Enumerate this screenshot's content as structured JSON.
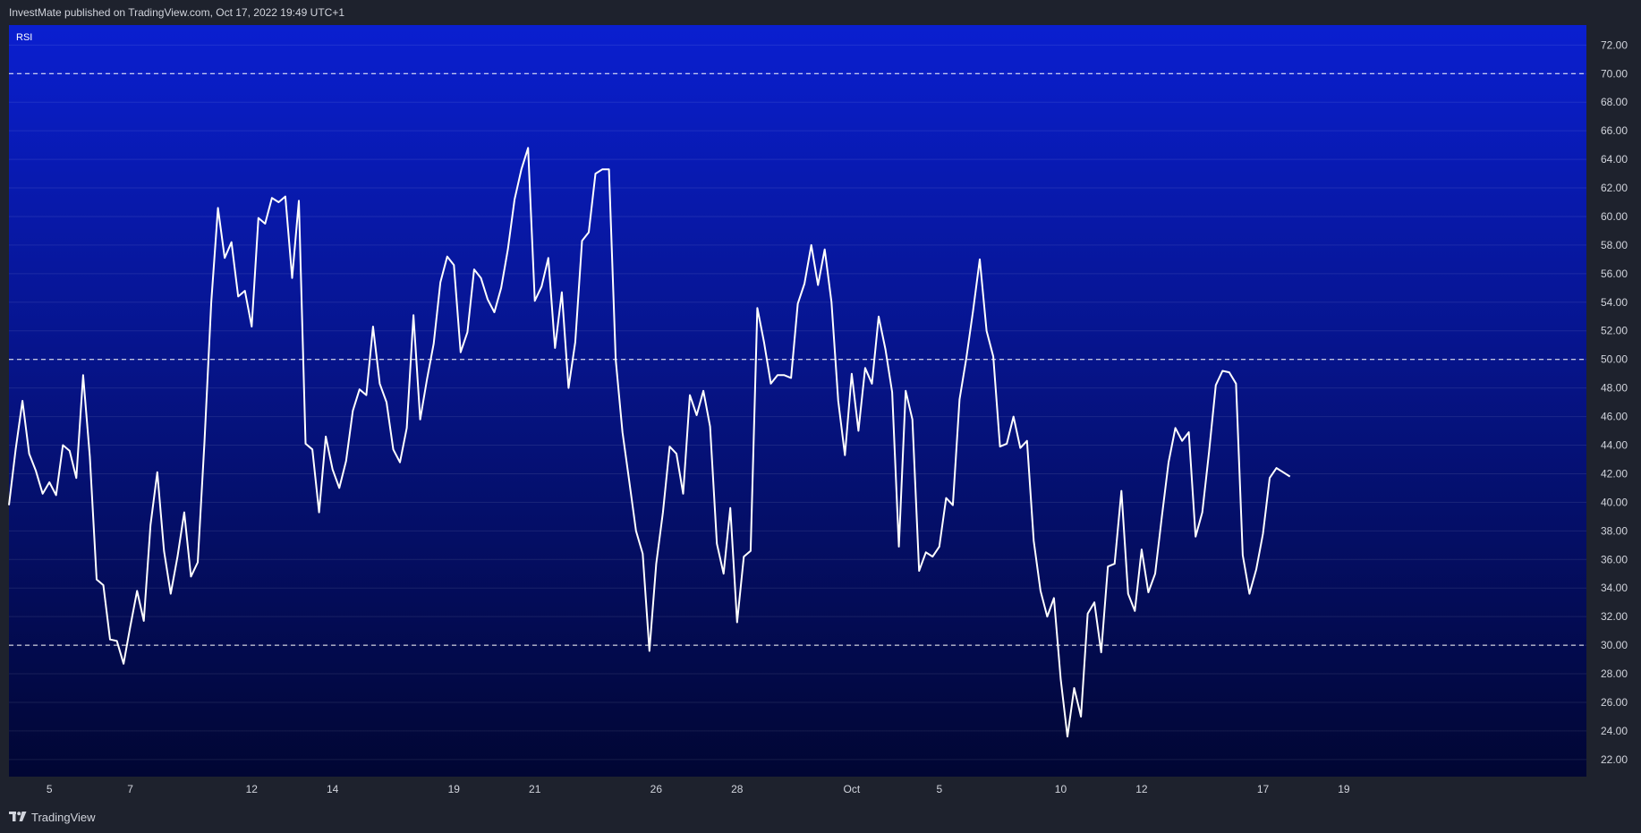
{
  "header": {
    "published_text": "InvestMate published on TradingView.com, Oct 17, 2022 19:49 UTC+1"
  },
  "footer": {
    "brand": "TradingView",
    "logo_icon": "tradingview-logo-icon"
  },
  "indicator_label": "RSI",
  "colors": {
    "outer_background": "#1e222d",
    "plot_gradient_top": "#0a1fd0",
    "plot_gradient_bottom": "#010633",
    "line": "#ffffff",
    "text": "#d1d4dc"
  },
  "chart_data": {
    "type": "line",
    "title": "",
    "xlabel": "",
    "ylabel": "",
    "ylim": [
      20.8,
      73.4
    ],
    "y_ticks": [
      "72.00",
      "70.00",
      "68.00",
      "66.00",
      "64.00",
      "62.00",
      "60.00",
      "58.00",
      "56.00",
      "54.00",
      "52.00",
      "50.00",
      "48.00",
      "46.00",
      "44.00",
      "42.00",
      "40.00",
      "38.00",
      "36.00",
      "34.00",
      "32.00",
      "30.00",
      "28.00",
      "26.00",
      "24.00",
      "22.00"
    ],
    "reference_lines": [
      70,
      50,
      30
    ],
    "x_tick_labels": [
      "5",
      "7",
      "12",
      "14",
      "19",
      "21",
      "26",
      "28",
      "Oct",
      "5",
      "10",
      "12",
      "17",
      "19"
    ],
    "x_tick_index": [
      6,
      18,
      36,
      48,
      66,
      78,
      96,
      108,
      125,
      138,
      156,
      168,
      186,
      198
    ],
    "grid": true,
    "legend": "none",
    "series": [
      {
        "values": [
          39.8,
          43.7,
          47.1,
          43.4,
          42.2,
          40.6,
          41.4,
          40.5,
          44.0,
          43.6,
          41.7,
          48.9,
          43.2,
          34.6,
          34.2,
          30.4,
          30.3,
          28.7,
          31.3,
          33.8,
          31.7,
          38.4,
          42.1,
          36.6,
          33.6,
          36.2,
          39.3,
          34.8,
          35.8,
          44.2,
          54.0,
          60.6,
          57.1,
          58.2,
          54.4,
          54.8,
          52.3,
          59.9,
          59.5,
          61.3,
          61.0,
          61.4,
          55.7,
          61.1,
          44.1,
          43.7,
          39.3,
          44.6,
          42.3,
          41.0,
          42.9,
          46.4,
          47.9,
          47.5,
          52.3,
          48.3,
          47.0,
          43.7,
          42.8,
          45.2,
          53.1,
          45.8,
          48.6,
          51.1,
          55.4,
          57.2,
          56.6,
          50.5,
          51.9,
          56.3,
          55.7,
          54.2,
          53.3,
          55.0,
          57.7,
          61.2,
          63.3,
          64.8,
          54.1,
          55.1,
          57.1,
          50.8,
          54.7,
          48.0,
          51.2,
          58.3,
          58.9,
          63.0,
          63.3,
          63.3,
          50.0,
          44.9,
          41.5,
          38.0,
          36.4,
          29.6,
          35.7,
          39.3,
          43.9,
          43.4,
          40.6,
          47.5,
          46.1,
          47.8,
          45.3,
          37.1,
          35.0,
          39.6,
          31.6,
          36.2,
          36.6,
          53.6,
          51.2,
          48.3,
          48.9,
          48.9,
          48.7,
          53.9,
          55.3,
          58.0,
          55.2,
          57.7,
          54.0,
          47.1,
          43.3,
          49.0,
          45.0,
          49.4,
          48.3,
          53.0,
          50.7,
          47.7,
          36.9,
          47.8,
          45.8,
          35.2,
          36.5,
          36.2,
          36.9,
          40.3,
          39.8,
          47.2,
          50.1,
          53.4,
          57.0,
          52.0,
          50.2,
          43.9,
          44.1,
          46.0,
          43.8,
          44.3,
          37.3,
          33.8,
          32.0,
          33.3,
          27.6,
          23.6,
          27.0,
          25.0,
          32.2,
          33.0,
          29.5,
          35.5,
          35.7,
          40.8,
          33.6,
          32.4,
          36.7,
          33.7,
          35.0,
          39.0,
          42.8,
          45.2,
          44.3,
          44.9,
          37.6,
          39.3,
          43.5,
          48.2,
          49.2,
          49.1,
          48.3,
          36.3,
          33.6,
          35.3,
          37.8,
          41.7,
          42.4,
          42.1,
          41.8
        ]
      }
    ]
  }
}
